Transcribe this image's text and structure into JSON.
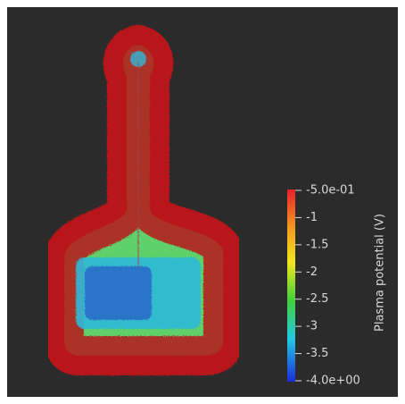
{
  "colorbar": {
    "title": "Plasma potential (V)",
    "ticks": [
      "-5.0e-01",
      "-1",
      "-1.5",
      "-2",
      "-2.5",
      "-3",
      "-3.5",
      "-4.0e+00"
    ]
  }
}
